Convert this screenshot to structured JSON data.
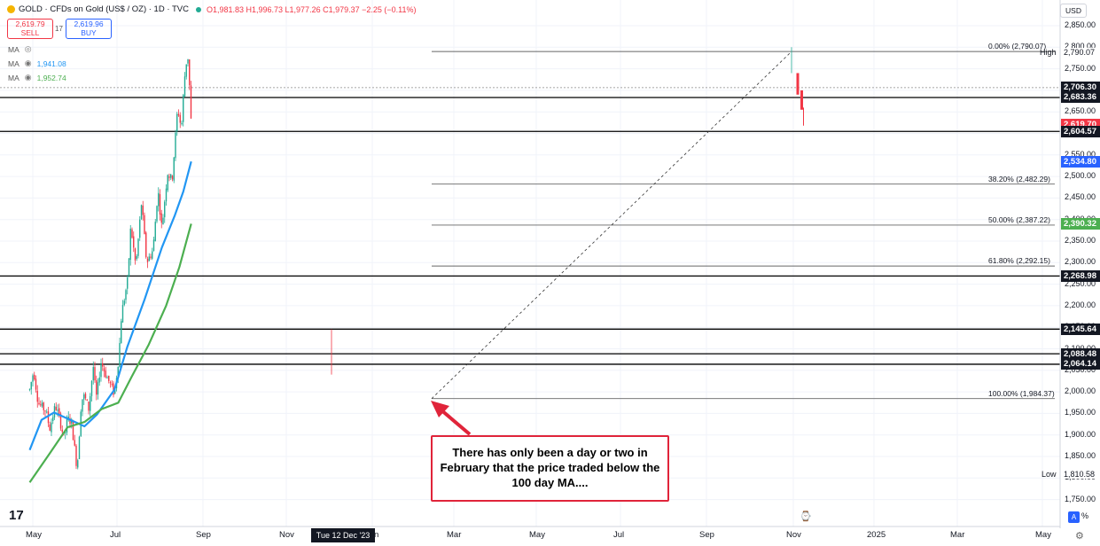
{
  "header": {
    "symbol": "GOLD · CFDs on Gold (US$ / OZ) · 1D · TVC",
    "ohlc": "O1,981.83 H1,996.73 L1,977.26 C1,979.37 −2.25 (−0.11%)",
    "sell_price": "2,619.79",
    "sell_label": "SELL",
    "spread": "17",
    "buy_price": "2,619.96",
    "buy_label": "BUY",
    "ma_label": "MA",
    "ma1_value": "1,941.08",
    "ma2_value": "1,952.74",
    "currency": "USD"
  },
  "colors": {
    "up": "#22ab94",
    "down": "#f23645",
    "ma100": "#2196f3",
    "ma200": "#4caf50",
    "annotation_border": "#e0243a"
  },
  "price_tags": [
    {
      "value": "2,706.30",
      "price": 2706.3,
      "style": "dark"
    },
    {
      "value": "2,683.36",
      "price": 2683.36,
      "style": "dark"
    },
    {
      "value": "2,619.70",
      "price": 2619.7,
      "style": "red"
    },
    {
      "value": "2,604.57",
      "price": 2604.57,
      "style": "dark"
    },
    {
      "value": "2,534.80",
      "price": 2534.8,
      "style": "blue"
    },
    {
      "value": "2,390.32",
      "price": 2390.32,
      "style": "green"
    },
    {
      "value": "2,268.98",
      "price": 2268.98,
      "style": "dark"
    },
    {
      "value": "2,145.64",
      "price": 2145.64,
      "style": "dark"
    },
    {
      "value": "2,088.48",
      "price": 2088.48,
      "style": "dark"
    },
    {
      "value": "2,064.14",
      "price": 2064.14,
      "style": "dark"
    }
  ],
  "high_label": "High",
  "high_value": "2,790.07",
  "low_label": "Low",
  "low_value": "1,810.58",
  "date_cursor": "Tue 12 Dec '23",
  "annotation": "There has only been a day or two in February that the price traded below the 100 day MA....",
  "tv_logo": "17",
  "chart_data": {
    "type": "candlestick",
    "y_ticks": [
      "2,850.00",
      "2,800.00",
      "2,750.00",
      "2,700.00",
      "2,650.00",
      "2,600.00",
      "2,550.00",
      "2,500.00",
      "2,450.00",
      "2,400.00",
      "2,350.00",
      "2,300.00",
      "2,250.00",
      "2,200.00",
      "2,150.00",
      "2,100.00",
      "2,050.00",
      "2,000.00",
      "1,950.00",
      "1,900.00",
      "1,850.00",
      "1,800.00",
      "1,750.00"
    ],
    "x_ticks": [
      "May",
      "Jul",
      "Sep",
      "Nov",
      "Jan",
      "Mar",
      "May",
      "Jul",
      "Sep",
      "Nov",
      "2025",
      "Mar",
      "May"
    ],
    "ylim": [
      1720,
      2880
    ],
    "horizontal_levels": [
      2683.36,
      2604.57,
      2268.98,
      2145.64,
      2088.48,
      2064.14
    ],
    "fibonacci": [
      {
        "label": "0.00% (2,790.07)",
        "price": 2790.07
      },
      {
        "label": "38.20% (2,482.29)",
        "price": 2482.29
      },
      {
        "label": "50.00% (2,387.22)",
        "price": 2387.22
      },
      {
        "label": "61.80% (2,292.15)",
        "price": 2292.15
      },
      {
        "label": "100.00% (1,984.37)",
        "price": 1984.37
      }
    ],
    "price_path": [
      {
        "d": "2023-04-20",
        "p": 2005
      },
      {
        "d": "2023-05-04",
        "p": 2050
      },
      {
        "d": "2023-05-20",
        "p": 1975
      },
      {
        "d": "2023-06-01",
        "p": 1965
      },
      {
        "d": "2023-06-15",
        "p": 1958
      },
      {
        "d": "2023-06-30",
        "p": 1915
      },
      {
        "d": "2023-07-20",
        "p": 1968
      },
      {
        "d": "2023-08-01",
        "p": 1945
      },
      {
        "d": "2023-08-20",
        "p": 1890
      },
      {
        "d": "2023-09-01",
        "p": 1938
      },
      {
        "d": "2023-09-15",
        "p": 1930
      },
      {
        "d": "2023-10-05",
        "p": 1820
      },
      {
        "d": "2023-10-20",
        "p": 1982
      },
      {
        "d": "2023-10-31",
        "p": 1990
      },
      {
        "d": "2023-11-15",
        "p": 1960
      },
      {
        "d": "2023-12-01",
        "p": 2060
      },
      {
        "d": "2023-12-04",
        "p": 2030
      },
      {
        "d": "2023-12-13",
        "p": 1985
      },
      {
        "d": "2023-12-28",
        "p": 2070
      },
      {
        "d": "2024-01-15",
        "p": 2040
      },
      {
        "d": "2024-02-14",
        "p": 1995
      },
      {
        "d": "2024-03-01",
        "p": 2085
      },
      {
        "d": "2024-03-10",
        "p": 2180
      },
      {
        "d": "2024-04-01",
        "p": 2260
      },
      {
        "d": "2024-04-12",
        "p": 2385
      },
      {
        "d": "2024-04-30",
        "p": 2290
      },
      {
        "d": "2024-05-20",
        "p": 2440
      },
      {
        "d": "2024-06-07",
        "p": 2300
      },
      {
        "d": "2024-06-30",
        "p": 2330
      },
      {
        "d": "2024-07-17",
        "p": 2470
      },
      {
        "d": "2024-07-31",
        "p": 2380
      },
      {
        "d": "2024-08-20",
        "p": 2510
      },
      {
        "d": "2024-09-05",
        "p": 2490
      },
      {
        "d": "2024-09-25",
        "p": 2660
      },
      {
        "d": "2024-10-08",
        "p": 2610
      },
      {
        "d": "2024-10-18",
        "p": 2720
      },
      {
        "d": "2024-10-30",
        "p": 2790
      },
      {
        "d": "2024-11-04",
        "p": 2735
      },
      {
        "d": "2024-11-08",
        "p": 2680
      },
      {
        "d": "2024-11-12",
        "p": 2619
      }
    ],
    "series": [
      {
        "name": "MA 100",
        "points": [
          {
            "d": "2023-04-20",
            "v": 1865
          },
          {
            "d": "2023-06-01",
            "v": 1935
          },
          {
            "d": "2023-07-15",
            "v": 1952
          },
          {
            "d": "2023-09-01",
            "v": 1938
          },
          {
            "d": "2023-10-31",
            "v": 1920
          },
          {
            "d": "2023-12-15",
            "v": 1948
          },
          {
            "d": "2024-02-14",
            "v": 2005
          },
          {
            "d": "2024-03-31",
            "v": 2105
          },
          {
            "d": "2024-05-31",
            "v": 2215
          },
          {
            "d": "2024-07-31",
            "v": 2335
          },
          {
            "d": "2024-09-15",
            "v": 2410
          },
          {
            "d": "2024-10-15",
            "v": 2465
          },
          {
            "d": "2024-11-12",
            "v": 2534.8
          }
        ]
      },
      {
        "name": "MA 200",
        "points": [
          {
            "d": "2023-04-20",
            "v": 1790
          },
          {
            "d": "2023-07-01",
            "v": 1858
          },
          {
            "d": "2023-09-01",
            "v": 1918
          },
          {
            "d": "2023-10-31",
            "v": 1930
          },
          {
            "d": "2023-12-31",
            "v": 1960
          },
          {
            "d": "2024-02-28",
            "v": 1975
          },
          {
            "d": "2024-04-15",
            "v": 2035
          },
          {
            "d": "2024-06-15",
            "v": 2110
          },
          {
            "d": "2024-08-15",
            "v": 2200
          },
          {
            "d": "2024-10-01",
            "v": 2290
          },
          {
            "d": "2024-11-12",
            "v": 2390.3
          }
        ]
      }
    ]
  }
}
